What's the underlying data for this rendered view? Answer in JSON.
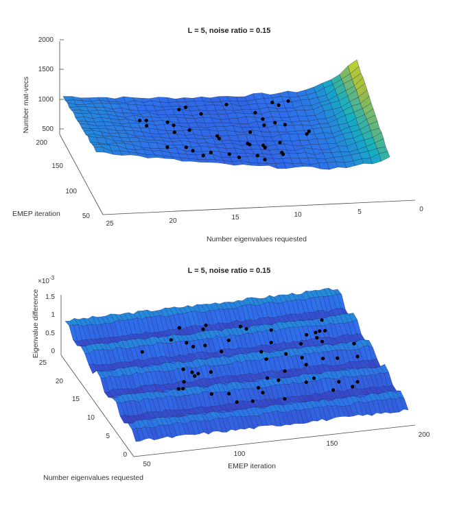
{
  "chart_data": [
    {
      "type": "surface3d",
      "title": "L = 5, noise ratio = 0.15",
      "xlabel": "Number eigenvalues requested",
      "ylabel": "EMEP iteration",
      "zlabel": "Number mat-vecs",
      "x_ticks": [
        "25",
        "20",
        "15",
        "10",
        "5",
        "0"
      ],
      "y_ticks": [
        "50",
        "100",
        "150",
        "200"
      ],
      "z_ticks": [
        "500",
        "1000",
        "1500",
        "2000"
      ],
      "xlim": [
        0,
        25
      ],
      "ylim": [
        50,
        200
      ],
      "zlim": [
        500,
        2000
      ],
      "surface_profile": {
        "eigenvalues": [
          25,
          20,
          15,
          10,
          5,
          2,
          1
        ],
        "approx_matvecs": [
          950,
          850,
          700,
          650,
          700,
          1500,
          2000
        ]
      },
      "markers": "black dots at minimum mat-vecs per iteration"
    },
    {
      "type": "surface3d",
      "title": "L = 5, noise ratio = 0.15",
      "xlabel": "EMEP iteration",
      "ylabel": "Number eigenvalues requested",
      "zlabel": "Eigenvalue difference",
      "exponent_label": "×10",
      "exponent_value": "-3",
      "x_ticks": [
        "50",
        "100",
        "150",
        "200"
      ],
      "y_ticks": [
        "0",
        "5",
        "10",
        "15",
        "20",
        "25"
      ],
      "z_ticks": [
        "0",
        "0.5",
        "1",
        "1.5"
      ],
      "xlim": [
        50,
        200
      ],
      "ylim": [
        0,
        25
      ],
      "zlim": [
        0,
        0.0015
      ],
      "markers": "black dots along selected eigenvalue counts"
    }
  ]
}
